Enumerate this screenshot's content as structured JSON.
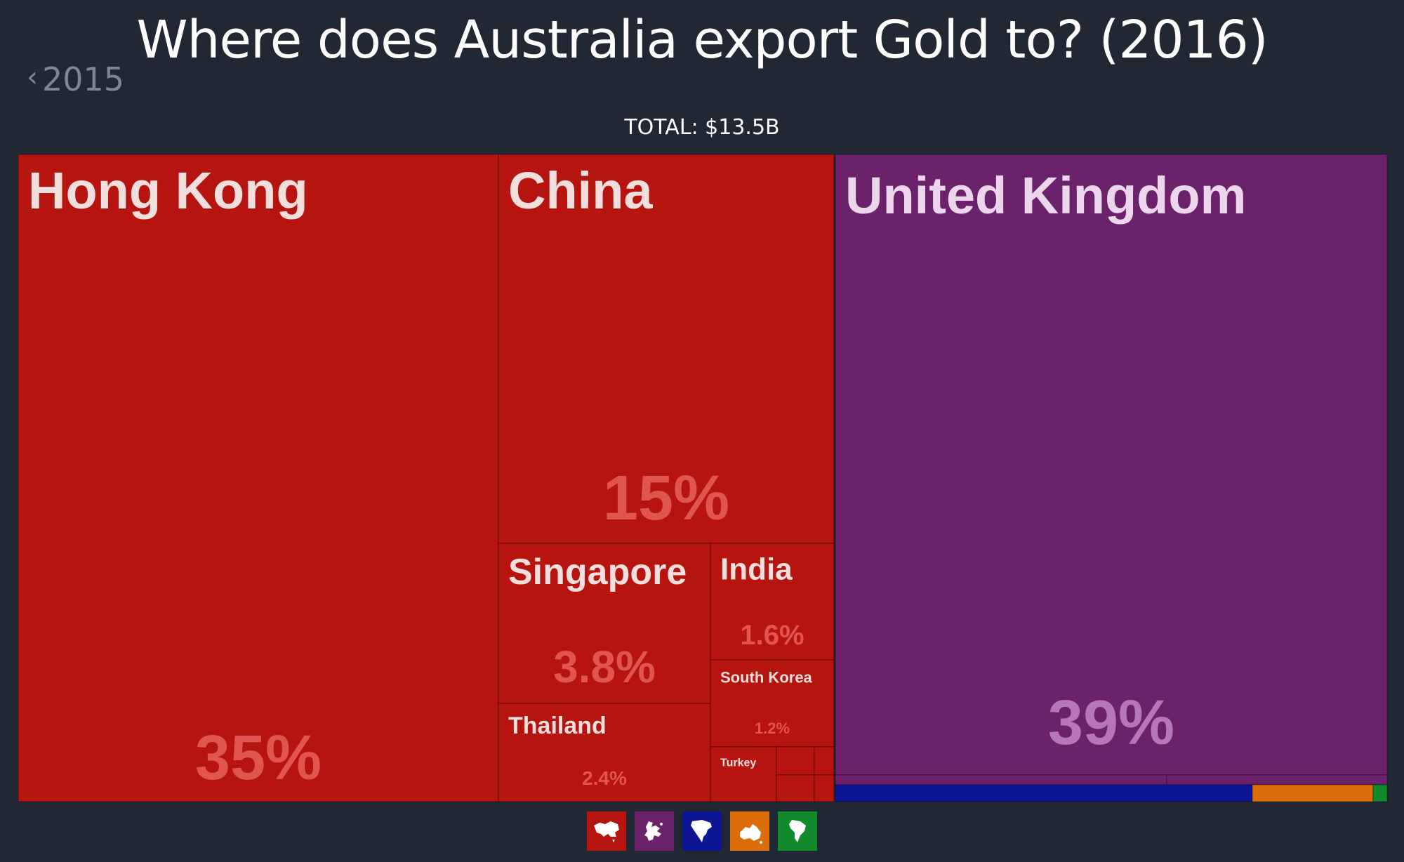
{
  "title": "Where does Australia export Gold to? (2016)",
  "nav": {
    "prev_label": "2015"
  },
  "total_label": "TOTAL: $13.5B",
  "colors": {
    "background": "#222833",
    "asia": "#B5150E",
    "europe": "#6B226B",
    "north_america": "#0F1694",
    "oceania": "#DB6E0A",
    "south_america": "#108A2C"
  },
  "chart_data": {
    "type": "treemap",
    "title": "Where does Australia export Gold to? (2016)",
    "total": "$13.5B",
    "regions": [
      {
        "icon": "asia-map-icon",
        "color": "#B5150E",
        "items": [
          {
            "name": "Hong Kong",
            "share": 35,
            "label": "35%"
          },
          {
            "name": "China",
            "share": 15,
            "label": "15%"
          },
          {
            "name": "Singapore",
            "share": 3.8,
            "label": "3.8%"
          },
          {
            "name": "Thailand",
            "share": 2.4,
            "label": "2.4%"
          },
          {
            "name": "India",
            "share": 1.6,
            "label": "1.6%"
          },
          {
            "name": "South Korea",
            "share": 1.2,
            "label": "1.2%"
          },
          {
            "name": "Turkey",
            "share": 0.5,
            "label": ""
          }
        ]
      },
      {
        "icon": "europe-map-icon",
        "color": "#6B226B",
        "items": [
          {
            "name": "United Kingdom",
            "share": 39,
            "label": "39%"
          }
        ]
      },
      {
        "icon": "north-america-map-icon",
        "color": "#0F1694",
        "items": []
      },
      {
        "icon": "oceania-map-icon",
        "color": "#DB6E0A",
        "items": []
      },
      {
        "icon": "south-america-map-icon",
        "color": "#108A2C",
        "items": []
      }
    ]
  }
}
